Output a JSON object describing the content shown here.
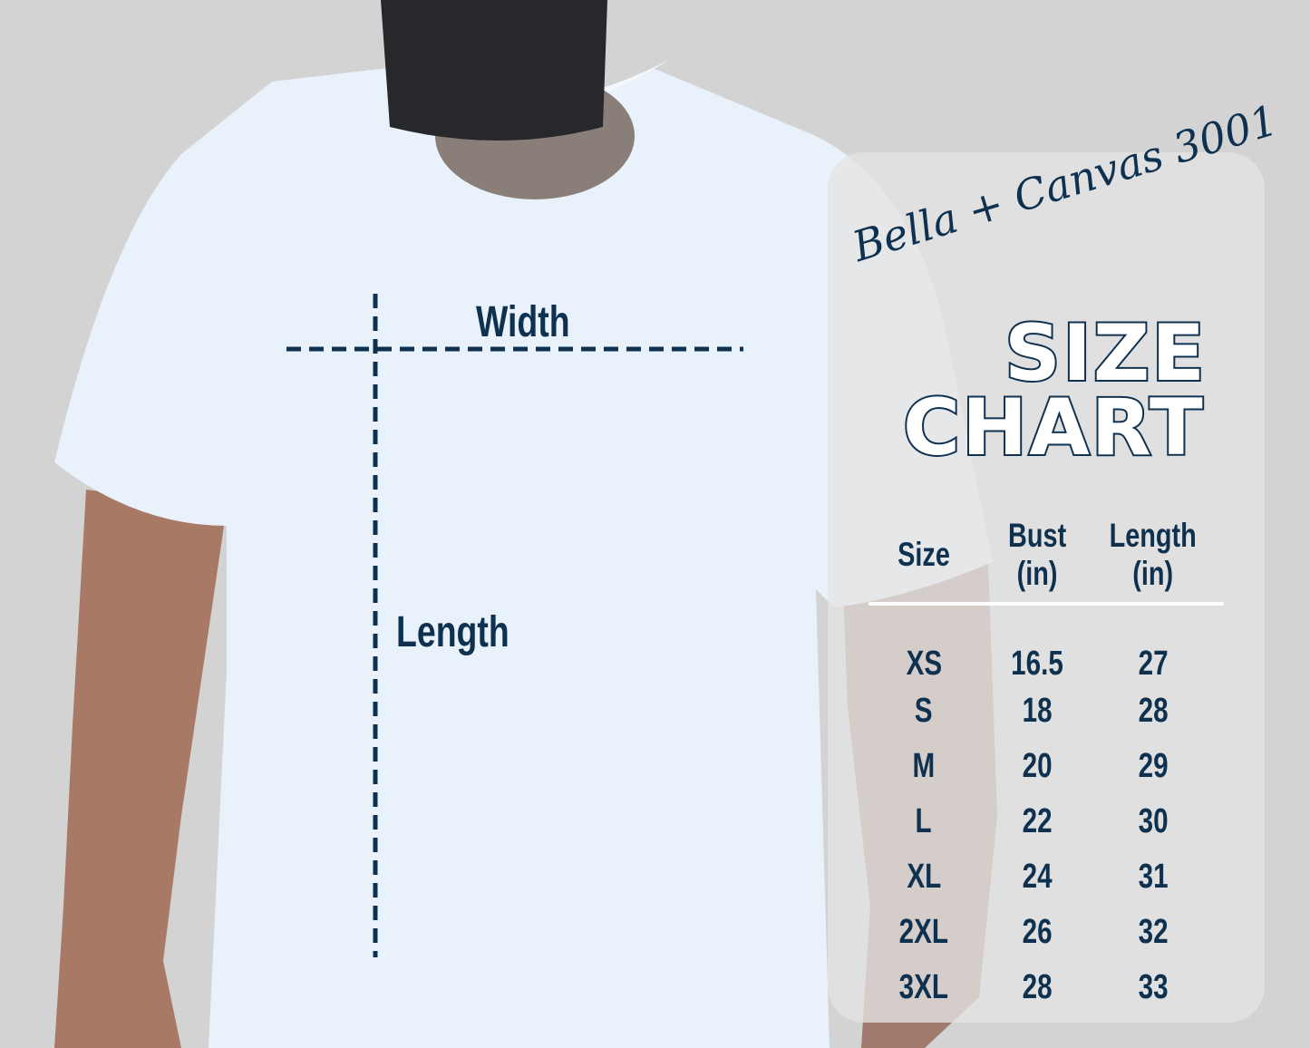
{
  "colors": {
    "text": "#0e3150",
    "background": "#d3d3d3",
    "shirt": "#e9f2fb"
  },
  "diagram": {
    "width_label": "Width",
    "length_label": "Length"
  },
  "chart": {
    "brand": "Bella + Canvas 3001",
    "title_line1": "SIZE",
    "title_line2": "CHART",
    "headers": {
      "size": "Size",
      "bust": "Bust",
      "bust_unit": "(in)",
      "length": "Length",
      "length_unit": "(in)"
    },
    "rows": [
      {
        "size": "XS",
        "bust": "16.5",
        "length": "27"
      },
      {
        "size": "S",
        "bust": "18",
        "length": "28"
      },
      {
        "size": "M",
        "bust": "20",
        "length": "29"
      },
      {
        "size": "L",
        "bust": "22",
        "length": "30"
      },
      {
        "size": "XL",
        "bust": "24",
        "length": "31"
      },
      {
        "size": "2XL",
        "bust": "26",
        "length": "32"
      },
      {
        "size": "3XL",
        "bust": "28",
        "length": "33"
      }
    ]
  }
}
